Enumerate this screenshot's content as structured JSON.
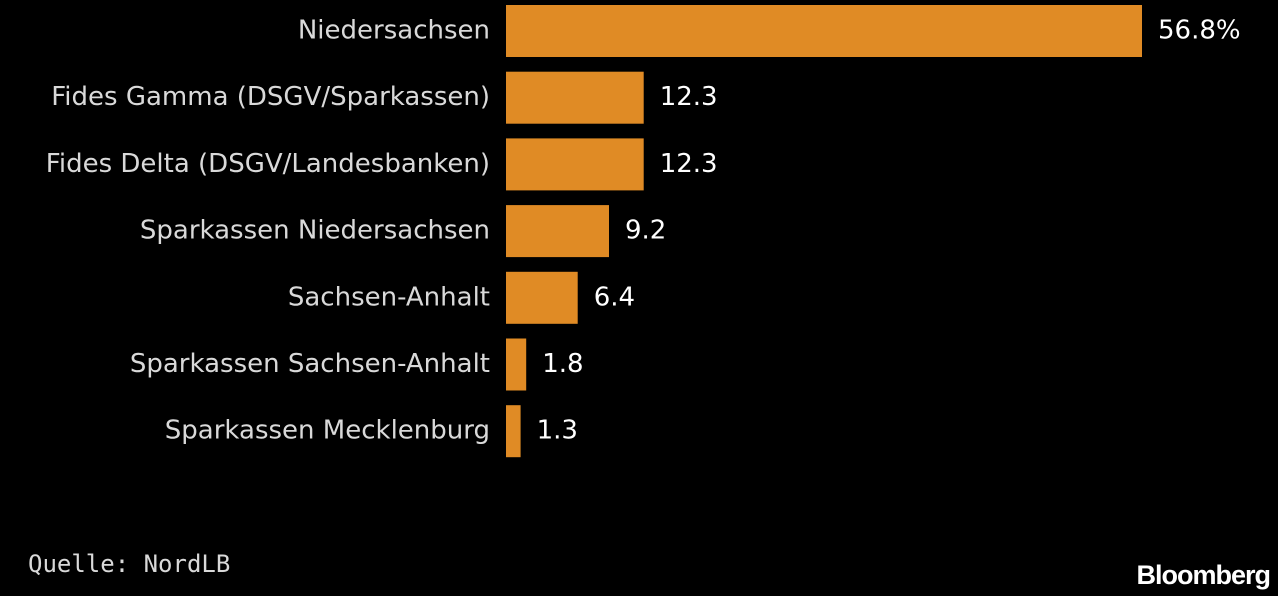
{
  "chart_data": {
    "type": "bar",
    "orientation": "horizontal",
    "categories": [
      "Niedersachsen",
      "Fides Gamma (DSGV/Sparkassen)",
      "Fides Delta (DSGV/Landesbanken)",
      "Sparkassen Niedersachsen",
      "Sachsen-Anhalt",
      "Sparkassen Sachsen-Anhalt",
      "Sparkassen Mecklenburg"
    ],
    "values": [
      56.8,
      12.3,
      12.3,
      9.2,
      6.4,
      1.8,
      1.3
    ],
    "data_labels": [
      "56.8%",
      "12.3",
      "12.3",
      "9.2",
      "6.4",
      "1.8",
      "1.3"
    ],
    "title": "",
    "xlabel": "",
    "ylabel": "",
    "grid": false,
    "legend": "none",
    "bar_color": "#e08b25",
    "background_color": "#000000"
  },
  "footer": {
    "source": "Quelle: NordLB",
    "brand": "Bloomberg"
  }
}
